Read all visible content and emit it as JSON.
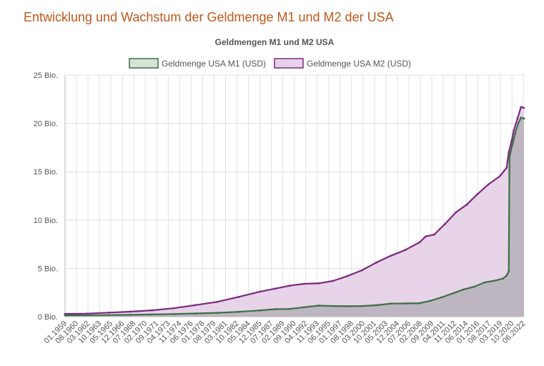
{
  "page": {
    "heading": "Entwicklung und Wachstum der Geldmenge M1 und M2 der USA"
  },
  "colors": {
    "heading": "#c0581b",
    "m1_line": "#3d6e46",
    "m1_fill": "#d6e2d6",
    "m2_line": "#7b2a80",
    "m2_fill": "#e6d2e8",
    "m1_area_overlap": "#b5b0b8"
  },
  "chart_data": {
    "type": "area",
    "title": "Geldmengen M1 und M2 USA",
    "legend_position": "top-center",
    "grid": true,
    "ylim": [
      0,
      25
    ],
    "y_ticks": [
      {
        "value": 0,
        "label": "0 Bio."
      },
      {
        "value": 5,
        "label": "5 Bio."
      },
      {
        "value": 10,
        "label": "10 Bio."
      },
      {
        "value": 15,
        "label": "15 Bio."
      },
      {
        "value": 20,
        "label": "20 Bio."
      },
      {
        "value": 25,
        "label": "25 Bio."
      }
    ],
    "xlim": [
      1959.0,
      2022.5
    ],
    "x_ticks": [
      {
        "value": 1959.0,
        "label": "01.1959"
      },
      {
        "value": 1960.58,
        "label": "08.1960"
      },
      {
        "value": 1962.17,
        "label": "03.1962"
      },
      {
        "value": 1963.75,
        "label": "10.1963"
      },
      {
        "value": 1965.33,
        "label": "05.1965"
      },
      {
        "value": 1966.92,
        "label": "12.1966"
      },
      {
        "value": 1968.5,
        "label": "07.1968"
      },
      {
        "value": 1970.08,
        "label": "02.1970"
      },
      {
        "value": 1971.67,
        "label": "09.1971"
      },
      {
        "value": 1973.25,
        "label": "04.1973"
      },
      {
        "value": 1974.83,
        "label": "11.1974"
      },
      {
        "value": 1976.42,
        "label": "06.1976"
      },
      {
        "value": 1978.0,
        "label": "01.1978"
      },
      {
        "value": 1979.58,
        "label": "08.1979"
      },
      {
        "value": 1981.17,
        "label": "03.1981"
      },
      {
        "value": 1982.75,
        "label": "10.1982"
      },
      {
        "value": 1984.33,
        "label": "05.1984"
      },
      {
        "value": 1985.92,
        "label": "12.1985"
      },
      {
        "value": 1987.5,
        "label": "07.1987"
      },
      {
        "value": 1989.08,
        "label": "02.1989"
      },
      {
        "value": 1990.67,
        "label": "09.1990"
      },
      {
        "value": 1992.25,
        "label": "04.1992"
      },
      {
        "value": 1993.83,
        "label": "11.1993"
      },
      {
        "value": 1995.42,
        "label": "06.1995"
      },
      {
        "value": 1997.0,
        "label": "01.1997"
      },
      {
        "value": 1998.58,
        "label": "08.1998"
      },
      {
        "value": 2000.17,
        "label": "03.2000"
      },
      {
        "value": 2001.75,
        "label": "10.2001"
      },
      {
        "value": 2003.33,
        "label": "05.2003"
      },
      {
        "value": 2004.92,
        "label": "12.2004"
      },
      {
        "value": 2006.5,
        "label": "07.2006"
      },
      {
        "value": 2008.08,
        "label": "02.2008"
      },
      {
        "value": 2009.67,
        "label": "09.2009"
      },
      {
        "value": 2011.25,
        "label": "04.2011"
      },
      {
        "value": 2012.83,
        "label": "11.2012"
      },
      {
        "value": 2014.42,
        "label": "06.2014"
      },
      {
        "value": 2016.0,
        "label": "01.2016"
      },
      {
        "value": 2017.58,
        "label": "08.2017"
      },
      {
        "value": 2019.17,
        "label": "03.2019"
      },
      {
        "value": 2020.75,
        "label": "10.2020"
      },
      {
        "value": 2022.33,
        "label": "06.2022"
      }
    ],
    "series": [
      {
        "name": "Geldmenge USA M1 (USD)",
        "points": [
          [
            1959.0,
            0.14
          ],
          [
            1962.0,
            0.15
          ],
          [
            1965.0,
            0.17
          ],
          [
            1968.0,
            0.19
          ],
          [
            1971.0,
            0.23
          ],
          [
            1974.0,
            0.27
          ],
          [
            1977.0,
            0.33
          ],
          [
            1980.0,
            0.4
          ],
          [
            1983.0,
            0.5
          ],
          [
            1986.0,
            0.65
          ],
          [
            1988.0,
            0.78
          ],
          [
            1990.0,
            0.8
          ],
          [
            1992.0,
            0.98
          ],
          [
            1994.0,
            1.15
          ],
          [
            1996.0,
            1.1
          ],
          [
            1998.0,
            1.08
          ],
          [
            2000.0,
            1.1
          ],
          [
            2002.0,
            1.18
          ],
          [
            2004.0,
            1.35
          ],
          [
            2006.0,
            1.37
          ],
          [
            2008.0,
            1.4
          ],
          [
            2009.5,
            1.65
          ],
          [
            2011.0,
            2.0
          ],
          [
            2012.5,
            2.4
          ],
          [
            2014.0,
            2.8
          ],
          [
            2015.5,
            3.1
          ],
          [
            2017.0,
            3.55
          ],
          [
            2018.5,
            3.75
          ],
          [
            2019.5,
            3.95
          ],
          [
            2020.0,
            4.25
          ],
          [
            2020.3,
            4.7
          ],
          [
            2020.4,
            16.5
          ],
          [
            2020.8,
            17.8
          ],
          [
            2021.2,
            19.0
          ],
          [
            2021.6,
            20.0
          ],
          [
            2022.0,
            20.6
          ],
          [
            2022.4,
            20.5
          ]
        ]
      },
      {
        "name": "Geldmenge USA M2 (USD)",
        "points": [
          [
            1959.0,
            0.29
          ],
          [
            1962.0,
            0.32
          ],
          [
            1965.0,
            0.42
          ],
          [
            1968.0,
            0.52
          ],
          [
            1971.0,
            0.66
          ],
          [
            1974.0,
            0.87
          ],
          [
            1977.0,
            1.2
          ],
          [
            1980.0,
            1.53
          ],
          [
            1983.0,
            2.05
          ],
          [
            1986.0,
            2.6
          ],
          [
            1988.0,
            2.9
          ],
          [
            1990.0,
            3.2
          ],
          [
            1992.0,
            3.4
          ],
          [
            1994.0,
            3.45
          ],
          [
            1996.0,
            3.7
          ],
          [
            1998.0,
            4.2
          ],
          [
            2000.0,
            4.8
          ],
          [
            2002.0,
            5.6
          ],
          [
            2004.0,
            6.3
          ],
          [
            2006.0,
            6.9
          ],
          [
            2008.0,
            7.7
          ],
          [
            2008.8,
            8.3
          ],
          [
            2010.0,
            8.5
          ],
          [
            2011.5,
            9.6
          ],
          [
            2013.0,
            10.8
          ],
          [
            2014.5,
            11.6
          ],
          [
            2016.0,
            12.7
          ],
          [
            2017.5,
            13.7
          ],
          [
            2019.0,
            14.5
          ],
          [
            2020.0,
            15.4
          ],
          [
            2020.3,
            17.0
          ],
          [
            2020.7,
            18.2
          ],
          [
            2021.0,
            19.3
          ],
          [
            2021.5,
            20.5
          ],
          [
            2022.0,
            21.7
          ],
          [
            2022.4,
            21.6
          ]
        ]
      }
    ]
  }
}
